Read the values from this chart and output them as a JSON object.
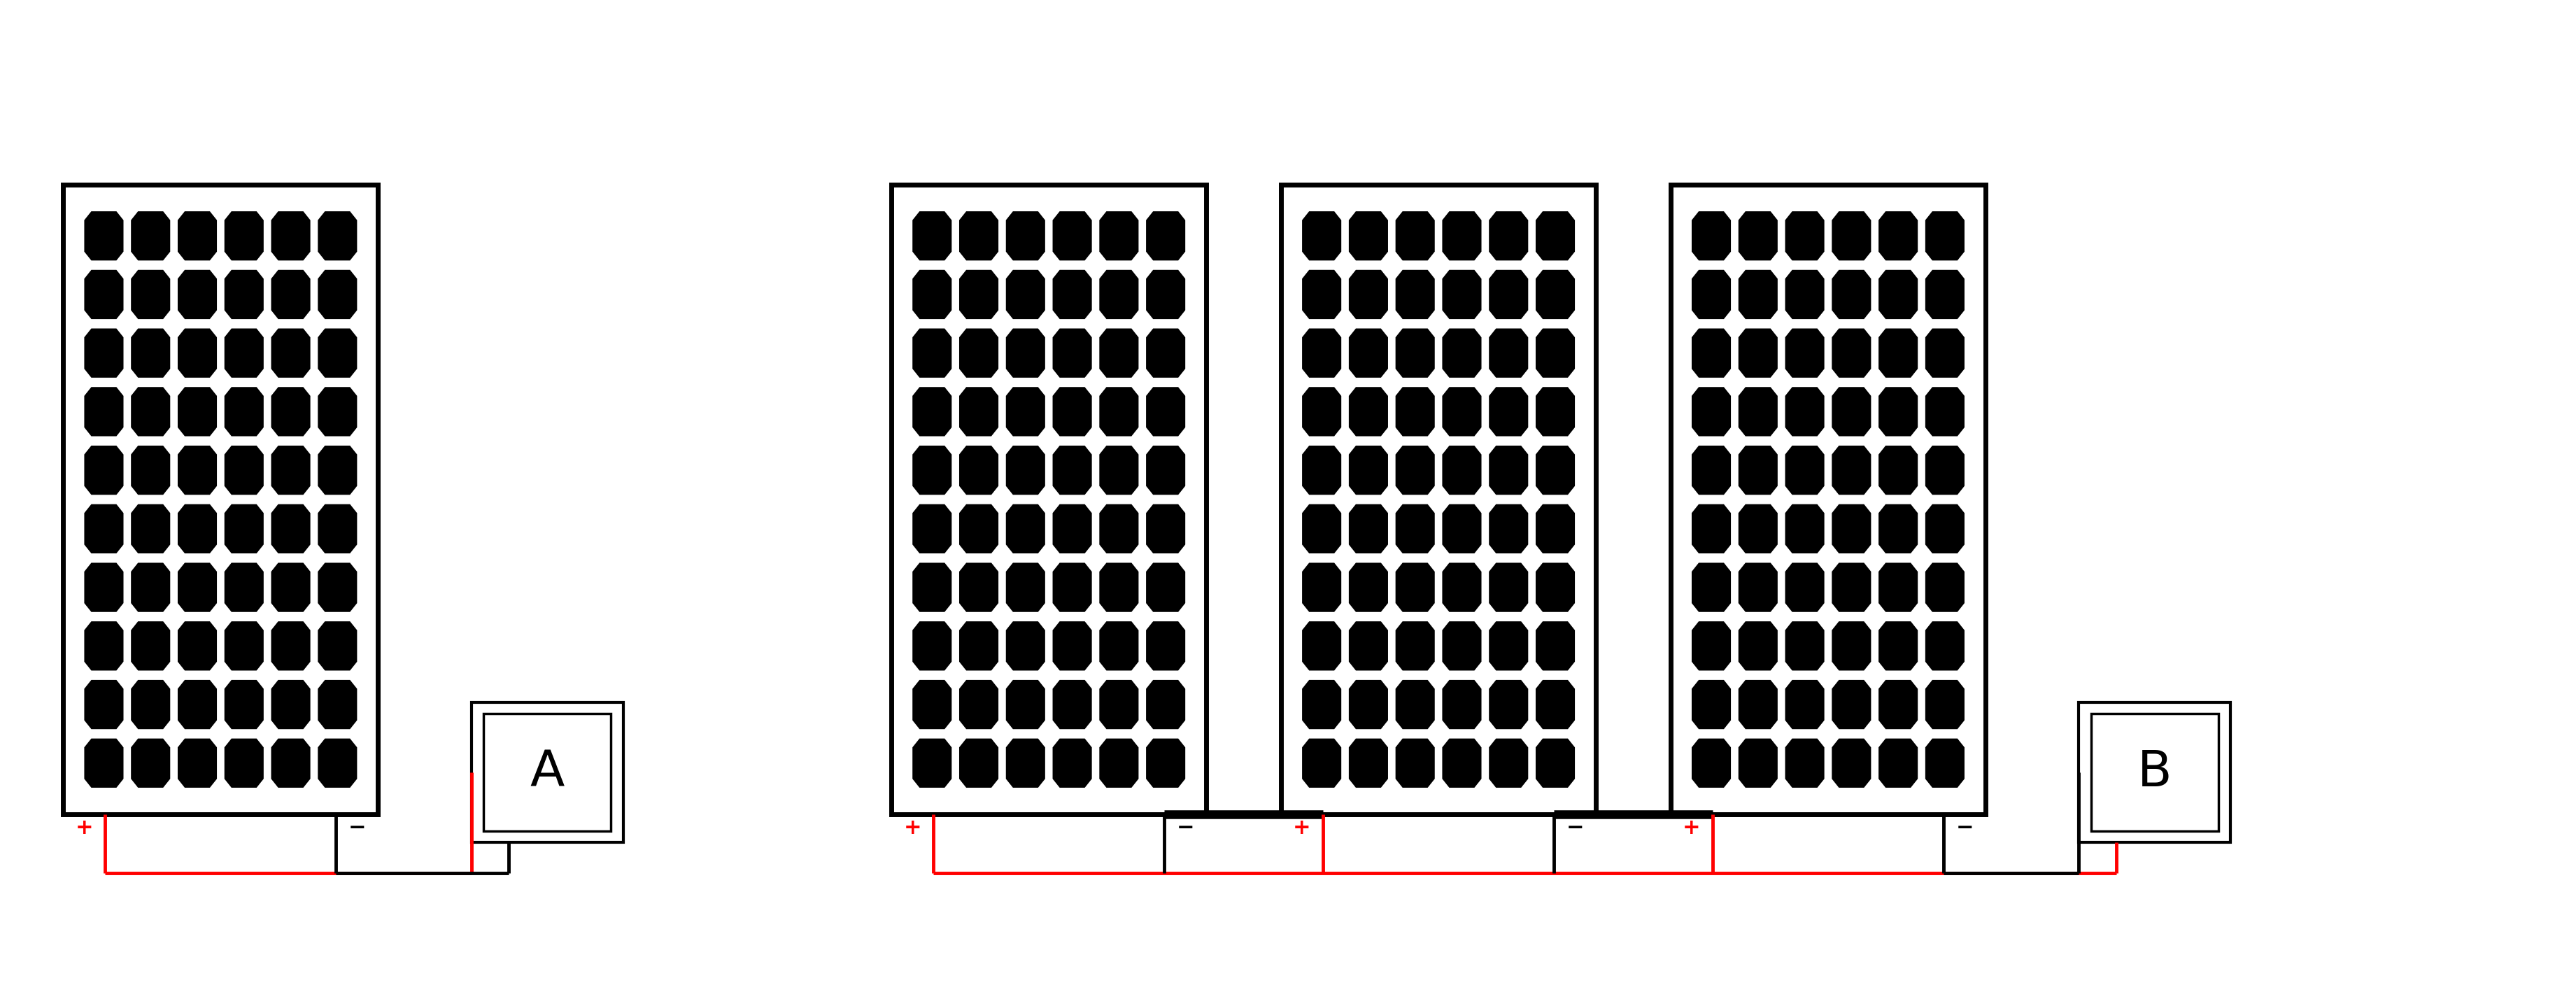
{
  "bg_color": "#ffffff",
  "fig_width": 36.82,
  "fig_height": 14.28,
  "module_rows": 10,
  "module_cols": 6,
  "cell_color": "#000000",
  "border_color": "#000000",
  "wire_pos_color": "#ff0000",
  "wire_neg_color": "#000000",
  "label_A": "A",
  "label_B": "B",
  "plus_color": "#ff0000",
  "minus_color": "#000000",
  "lw_wire": 3.5,
  "lw_border": 5.0,
  "lw_junction": 3.0,
  "lw_bus": 9.0
}
